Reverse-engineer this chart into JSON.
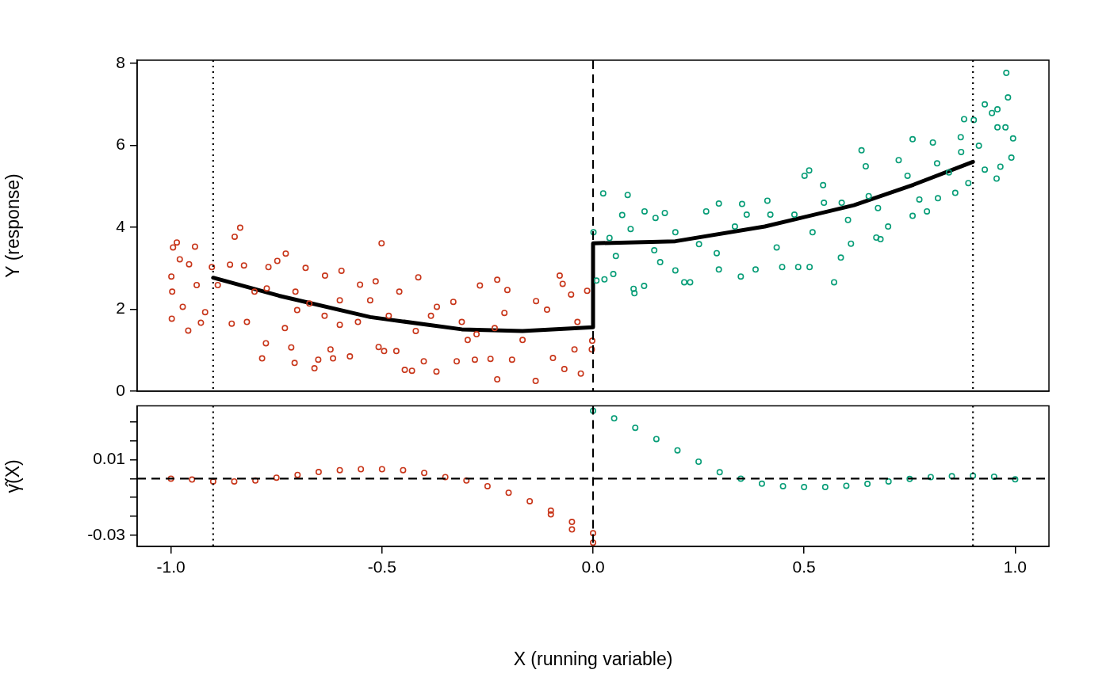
{
  "chart_data": [
    {
      "type": "scatter",
      "ylabel": "Y (response)",
      "xlim": [
        -1.08,
        1.08
      ],
      "ylim": [
        0,
        8.08
      ],
      "yticks": [
        0,
        2,
        4,
        6,
        8
      ],
      "tick_labels": "y",
      "marker": "circle",
      "series": [
        {
          "color": "#c8361a",
          "x": [
            -0.986,
            -0.995,
            -0.999,
            -0.998,
            -0.979,
            -0.957,
            -0.959,
            -0.943,
            -0.929,
            -0.919,
            -0.903,
            -0.849,
            -0.836,
            -0.86,
            -0.856,
            -0.82,
            -0.827,
            -0.784,
            -0.775,
            -0.769,
            -0.748,
            -0.728,
            -0.73,
            -0.715,
            -0.707,
            -0.681,
            -0.701,
            -0.66,
            -0.651,
            -0.635,
            -0.622,
            -0.616,
            -0.596,
            -0.576,
            -0.6,
            -0.552,
            -0.501,
            -0.515,
            -0.508,
            -0.495,
            -0.466,
            -0.459,
            -0.446,
            -0.429,
            -0.414,
            -0.401,
            -0.371,
            -0.37,
            -0.323,
            -0.331,
            -0.28,
            -0.268,
            -0.227,
            -0.227,
            -0.243,
            -0.203,
            -0.192,
            -0.135,
            -0.136,
            -0.095,
            -0.079,
            -0.072,
            -0.068,
            -0.052,
            -0.029,
            -0.014,
            -0.002,
            -0.003,
            -0.889,
            -0.802,
            -0.672,
            -0.636,
            -0.557,
            -0.484,
            -0.42,
            -0.384,
            -0.311,
            -0.297,
            -0.21,
            -0.167,
            -0.109,
            -0.044,
            -0.037,
            -0.276,
            -0.233,
            -0.528,
            -0.6,
            -0.705,
            -0.773,
            -0.939,
            -0.972,
            -0.997
          ],
          "values": [
            3.63,
            3.51,
            2.8,
            1.77,
            3.22,
            3.1,
            1.48,
            3.53,
            1.67,
            1.93,
            3.03,
            3.77,
            3.99,
            3.09,
            1.65,
            1.69,
            3.07,
            0.8,
            1.17,
            3.03,
            3.18,
            3.36,
            1.54,
            1.07,
            0.69,
            3.01,
            1.98,
            0.56,
            0.77,
            2.82,
            1.02,
            0.8,
            2.94,
            0.85,
            1.62,
            2.6,
            3.61,
            2.68,
            1.08,
            0.98,
            0.98,
            2.43,
            0.52,
            0.5,
            2.78,
            0.73,
            0.48,
            2.06,
            0.73,
            2.18,
            0.77,
            2.58,
            2.72,
            0.29,
            0.79,
            2.47,
            0.77,
            2.2,
            0.25,
            0.81,
            2.82,
            2.62,
            0.54,
            2.36,
            0.43,
            2.45,
            1.23,
            1.02,
            2.59,
            2.43,
            2.14,
            1.84,
            1.69,
            1.84,
            1.47,
            1.84,
            1.69,
            1.25,
            1.91,
            1.25,
            1.99,
            1.02,
            1.69,
            1.39,
            1.54,
            2.22,
            2.22,
            2.43,
            2.51,
            2.59,
            2.06,
            2.43
          ]
        },
        {
          "color": "#079d77",
          "x": [
            0.024,
            0.082,
            0.001,
            0.008,
            0.027,
            0.048,
            0.096,
            0.098,
            0.121,
            0.122,
            0.17,
            0.148,
            0.069,
            0.216,
            0.23,
            0.195,
            0.268,
            0.298,
            0.298,
            0.35,
            0.353,
            0.385,
            0.413,
            0.448,
            0.501,
            0.512,
            0.513,
            0.486,
            0.545,
            0.571,
            0.587,
            0.611,
            0.636,
            0.646,
            0.671,
            0.681,
            0.699,
            0.724,
            0.757,
            0.757,
            0.791,
            0.805,
            0.817,
            0.858,
            0.879,
            0.871,
            0.889,
            0.902,
            0.928,
            0.928,
            0.945,
            0.958,
            0.956,
            0.958,
            0.977,
            0.979,
            0.983,
            0.995,
            0.991,
            0.965,
            0.039,
            0.054,
            0.089,
            0.145,
            0.159,
            0.195,
            0.251,
            0.293,
            0.336,
            0.364,
            0.42,
            0.435,
            0.477,
            0.52,
            0.547,
            0.589,
            0.604,
            0.653,
            0.675,
            0.745,
            0.773,
            0.815,
            0.843,
            0.872,
            0.914
          ],
          "values": [
            4.83,
            4.79,
            3.88,
            2.7,
            2.73,
            2.86,
            2.5,
            2.39,
            2.57,
            4.39,
            4.35,
            4.23,
            4.3,
            2.66,
            2.66,
            2.95,
            4.39,
            4.58,
            2.97,
            2.8,
            4.57,
            2.97,
            4.65,
            3.03,
            5.26,
            5.39,
            3.03,
            3.03,
            5.03,
            2.66,
            3.26,
            3.6,
            5.88,
            5.49,
            3.75,
            3.71,
            4.02,
            5.64,
            6.15,
            4.28,
            4.39,
            6.07,
            4.71,
            4.84,
            6.64,
            6.2,
            5.08,
            6.62,
            7.0,
            5.41,
            6.79,
            6.88,
            5.19,
            6.44,
            6.44,
            7.77,
            7.17,
            6.17,
            5.7,
            5.48,
            3.74,
            3.3,
            3.96,
            3.44,
            3.15,
            3.88,
            3.59,
            3.37,
            4.02,
            4.31,
            4.31,
            3.51,
            4.31,
            3.88,
            4.6,
            4.6,
            4.18,
            4.76,
            4.47,
            5.26,
            4.68,
            5.56,
            5.34,
            5.84,
            5.99
          ]
        },
        {
          "type": "line",
          "color": "#000000",
          "marker": "none",
          "x": [
            -0.9,
            -0.744,
            -0.528,
            -0.311,
            -0.167,
            0,
            0,
            0.195,
            0.407,
            0.618,
            0.759,
            0.9
          ],
          "values": [
            2.77,
            2.33,
            1.81,
            1.51,
            1.47,
            1.56,
            3.61,
            3.66,
            4.02,
            4.54,
            5.04,
            5.6
          ]
        }
      ],
      "ref_lines": [
        {
          "axis": "x",
          "value": -0.9,
          "line_style": "dotted",
          "color": "#000000"
        },
        {
          "axis": "x",
          "value": 0,
          "line_style": "dashed",
          "color": "#000000"
        },
        {
          "axis": "x",
          "value": 0.9,
          "line_style": "dotted",
          "color": "#000000"
        }
      ]
    },
    {
      "type": "scatter",
      "xlabel": "X (running variable)",
      "ylabel": "γ̂(X)",
      "xlim": [
        -1.08,
        1.08
      ],
      "ylim": [
        -0.036,
        0.0386
      ],
      "xticks": [
        {
          "value": -1,
          "label": "-1.0"
        },
        {
          "value": -0.5,
          "label": "-0.5"
        },
        {
          "value": 0,
          "label": "0.0"
        },
        {
          "value": 0.5,
          "label": "0.5"
        },
        {
          "value": 1,
          "label": "1.0"
        }
      ],
      "yticks": [
        {
          "value": 0.03,
          "label": null
        },
        {
          "value": 0.02,
          "label": null
        },
        0.01,
        {
          "value": 0,
          "label": null
        },
        {
          "value": -0.01,
          "label": null
        },
        {
          "value": -0.02,
          "label": null
        },
        -0.03
      ],
      "marker": "circle",
      "series": [
        {
          "color": "#c8361a",
          "x": [
            -1,
            -0.95,
            -0.9,
            -0.85,
            -0.8,
            -0.75,
            -0.7,
            -0.65,
            -0.6,
            -0.55,
            -0.5,
            -0.45,
            -0.4,
            -0.35,
            -0.3,
            -0.25,
            -0.2,
            -0.15,
            -0.1,
            -0.05,
            0,
            -0.1,
            -0.05,
            0
          ],
          "values": [
            0.0,
            -0.0005,
            -0.0015,
            -0.0015,
            -0.001,
            0.0005,
            0.002,
            0.0035,
            0.0045,
            0.005,
            0.005,
            0.0045,
            0.003,
            0.0008,
            -0.001,
            -0.004,
            -0.0075,
            -0.012,
            -0.017,
            -0.023,
            -0.029,
            -0.019,
            -0.027,
            -0.034
          ]
        },
        {
          "color": "#079d77",
          "x": [
            0,
            0.05,
            0.1,
            0.15,
            0.2,
            0.25,
            0.3,
            0.35,
            0.4,
            0.45,
            0.5,
            0.55,
            0.6,
            0.65,
            0.7,
            0.75,
            0.8,
            0.85,
            0.9,
            0.95,
            1.0
          ],
          "values": [
            0.036,
            0.032,
            0.027,
            0.021,
            0.015,
            0.009,
            0.0034,
            0,
            -0.0027,
            -0.004,
            -0.0045,
            -0.0045,
            -0.0038,
            -0.0028,
            -0.0015,
            -0.0002,
            0.0008,
            0.0013,
            0.0015,
            0.001,
            -0.0004
          ]
        }
      ],
      "ref_lines": [
        {
          "axis": "x",
          "value": -0.9,
          "line_style": "dotted",
          "color": "#000000"
        },
        {
          "axis": "x",
          "value": 0,
          "line_style": "dashed",
          "color": "#000000"
        },
        {
          "axis": "x",
          "value": 0.9,
          "line_style": "dotted",
          "color": "#000000"
        },
        {
          "axis": "y",
          "value": 0,
          "line_style": "dashed",
          "color": "#000000"
        }
      ]
    }
  ]
}
